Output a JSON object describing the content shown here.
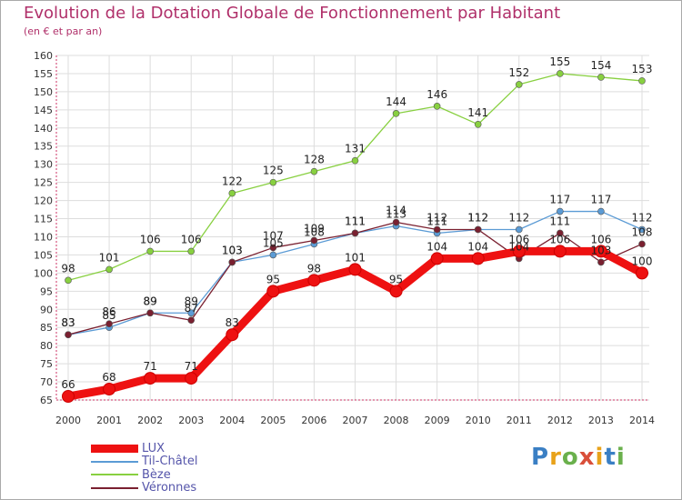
{
  "header": {
    "title": "Evolution de la Dotation Globale de Fonctionnement par Habitant",
    "subtitle": "(en € et par an)"
  },
  "logo": {
    "text": "Proxiti",
    "letters": [
      "P",
      "r",
      "o",
      "x",
      "i",
      "t",
      "i"
    ],
    "colors": [
      "#3a7fc4",
      "#e8a21a",
      "#6ab04c",
      "#d94f3a",
      "#e8a21a",
      "#3a7fc4",
      "#6ab04c"
    ]
  },
  "chart_data": {
    "type": "line",
    "title": "Evolution de la Dotation Globale de Fonctionnement par Habitant",
    "subtitle": "(en € et par an)",
    "xlabel": "",
    "ylabel": "",
    "ylim": [
      65,
      160
    ],
    "yticks": [
      "65",
      "70",
      "75",
      "80",
      "85",
      "90",
      "95",
      "100",
      "105",
      "110",
      "115",
      "120",
      "125",
      "130",
      "135",
      "140",
      "145",
      "150",
      "155",
      "160"
    ],
    "x": [
      "2000",
      "2001",
      "2002",
      "2003",
      "2004",
      "2005",
      "2006",
      "2007",
      "2008",
      "2009",
      "2010",
      "2011",
      "2012",
      "2013",
      "2014"
    ],
    "grid": true,
    "legend": "bottom-left",
    "series": [
      {
        "name": "LUX",
        "color": "#ee1111",
        "values": [
          66,
          68,
          71,
          71,
          83,
          95,
          98,
          101,
          95,
          104,
          104,
          106,
          106,
          106,
          100
        ],
        "labels": [
          "66",
          "68",
          "71",
          "71",
          "83",
          "95",
          "98",
          "101",
          "95",
          "104",
          "104",
          "106",
          "106",
          "106",
          "100"
        ]
      },
      {
        "name": "Til-Châtel",
        "color": "#5b9bd5",
        "values": [
          83,
          85,
          89,
          89,
          103,
          105,
          108,
          111,
          113,
          111,
          112,
          112,
          117,
          117,
          112
        ],
        "labels": [
          "83",
          "85",
          "89",
          "89",
          "103",
          "105",
          "108",
          "111",
          "113",
          "111",
          "112",
          "112",
          "117",
          "117",
          "112"
        ]
      },
      {
        "name": "Bèze",
        "color": "#88d040",
        "values": [
          98,
          101,
          106,
          106,
          122,
          125,
          128,
          131,
          144,
          146,
          141,
          152,
          155,
          154,
          153
        ],
        "labels": [
          "98",
          "101",
          "106",
          "106",
          "122",
          "125",
          "128",
          "131",
          "144",
          "146",
          "141",
          "152",
          "155",
          "154",
          "153"
        ]
      },
      {
        "name": "Véronnes",
        "color": "#7a2030",
        "values": [
          83,
          86,
          89,
          87,
          103,
          107,
          109,
          111,
          114,
          112,
          112,
          104,
          111,
          103,
          108
        ],
        "labels": [
          "83",
          "86",
          "89",
          "87",
          "103",
          "107",
          "109",
          "111",
          "114",
          "112",
          "112",
          "104",
          "111",
          "103",
          "108"
        ]
      }
    ]
  }
}
